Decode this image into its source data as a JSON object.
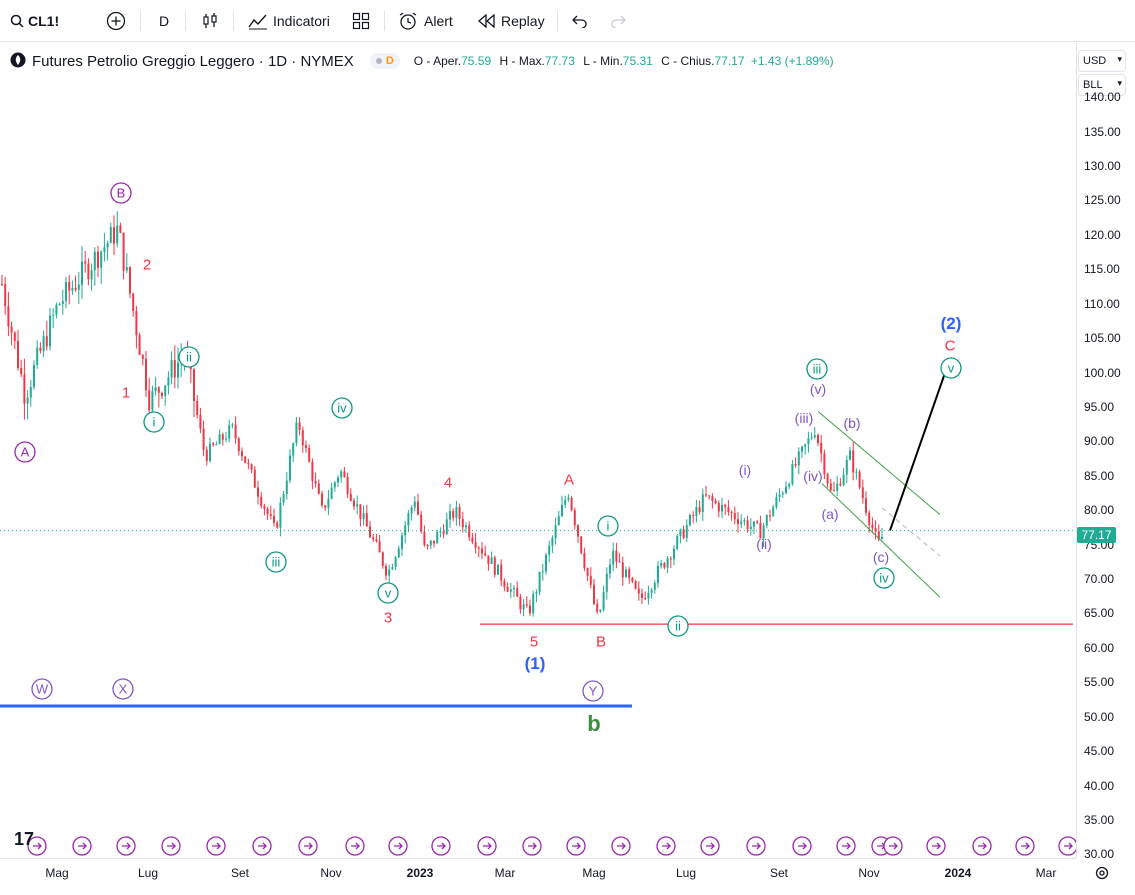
{
  "toolbar": {
    "symbol": "CL1!",
    "interval": "D",
    "indicators_label": "Indicatori",
    "alert_label": "Alert",
    "replay_label": "Replay"
  },
  "legend": {
    "title": "Futures Petrolio Greggio Leggero · 1D · NYMEX",
    "badge": "D",
    "o_label": "O - Aper.",
    "o_value": "75.59",
    "h_label": "H - Max.",
    "h_value": "77.73",
    "l_label": "L - Min.",
    "l_value": "75.31",
    "c_label": "C - Chius.",
    "c_value": "77.17",
    "change": "+1.43 (+1.89%)"
  },
  "yaxis": {
    "currency": "USD",
    "unit": "BLL",
    "last_price": "77.17",
    "ticks": [
      "140.00",
      "135.00",
      "130.00",
      "125.00",
      "120.00",
      "115.00",
      "110.00",
      "105.00",
      "100.00",
      "95.00",
      "90.00",
      "85.00",
      "80.00",
      "75.00",
      "70.00",
      "65.00",
      "60.00",
      "55.00",
      "50.00",
      "45.00",
      "40.00",
      "35.00",
      "30.00"
    ]
  },
  "xaxis": {
    "labels": [
      "Mag",
      "Lug",
      "Set",
      "Nov",
      "2023",
      "Mar",
      "Mag",
      "Lug",
      "Set",
      "Nov",
      "2024",
      "Mar"
    ]
  },
  "colors": {
    "up": "#22ab94",
    "down": "#f23645",
    "purple": "#9c27b0",
    "teal": "#089981",
    "red": "#f23645",
    "blue": "#2962ff",
    "green": "#388e3c",
    "violet": "#7e57c2"
  },
  "chart_data": {
    "type": "candlestick",
    "title": "Futures Petrolio Greggio Leggero · 1D · NYMEX",
    "ylim": [
      30,
      140
    ],
    "x": [
      "Mag",
      "Lug",
      "Set",
      "Nov",
      "2023",
      "Mar",
      "Mag",
      "Lug",
      "Set",
      "Nov",
      "2024",
      "Mar"
    ],
    "path_points": [
      {
        "t": "Mar 2022",
        "v": 113
      },
      {
        "t": "Apr 2022",
        "v": 97
      },
      {
        "t": "Mag 2022",
        "v": 110
      },
      {
        "t": "Giu 2022",
        "v": 121
      },
      {
        "t": "Lug 2022",
        "v": 96
      },
      {
        "t": "Lug 2022",
        "v": 103
      },
      {
        "t": "Ago 2022",
        "v": 88
      },
      {
        "t": "Set 2022",
        "v": 92
      },
      {
        "t": "Set 2022",
        "v": 77
      },
      {
        "t": "Ott 2022",
        "v": 93
      },
      {
        "t": "Nov 2022",
        "v": 80
      },
      {
        "t": "Nov 2022",
        "v": 86
      },
      {
        "t": "Dic 2022",
        "v": 71
      },
      {
        "t": "Gen 2023",
        "v": 82
      },
      {
        "t": "Feb 2023",
        "v": 74
      },
      {
        "t": "Mar 2023",
        "v": 80
      },
      {
        "t": "Mar 2023",
        "v": 65
      },
      {
        "t": "Apr 2023",
        "v": 83
      },
      {
        "t": "Mag 2023",
        "v": 64
      },
      {
        "t": "Mag 2023",
        "v": 74
      },
      {
        "t": "Giu 2023",
        "v": 67
      },
      {
        "t": "Lug 2023",
        "v": 82
      },
      {
        "t": "Ago 2023",
        "v": 77
      },
      {
        "t": "Set 2023",
        "v": 92
      },
      {
        "t": "Ott 2023",
        "v": 82
      },
      {
        "t": "Ott 2023",
        "v": 88
      },
      {
        "t": "Nov 2023",
        "v": 75
      },
      {
        "t": "Nov 2023",
        "v": 77.17
      }
    ],
    "horizontal_lines": [
      {
        "value": 63.6,
        "color": "red"
      },
      {
        "value": 51.7,
        "color": "blue"
      }
    ],
    "projection": {
      "from": 77.2,
      "to": 100.5
    },
    "wave_labels": [
      {
        "text": "B",
        "style": "circled",
        "color": "purple"
      },
      {
        "text": "A",
        "style": "circled",
        "color": "purple"
      },
      {
        "text": "2",
        "style": "plain",
        "color": "red"
      },
      {
        "text": "1",
        "style": "plain",
        "color": "red"
      },
      {
        "text": "ii",
        "style": "circled",
        "color": "teal"
      },
      {
        "text": "i",
        "style": "circled",
        "color": "teal"
      },
      {
        "text": "iv",
        "style": "circled",
        "color": "teal"
      },
      {
        "text": "iii",
        "style": "circled",
        "color": "teal"
      },
      {
        "text": "v",
        "style": "circled",
        "color": "teal"
      },
      {
        "text": "3",
        "style": "plain",
        "color": "red"
      },
      {
        "text": "4",
        "style": "plain",
        "color": "red"
      },
      {
        "text": "A",
        "style": "plain",
        "color": "red"
      },
      {
        "text": "i",
        "style": "circled",
        "color": "teal"
      },
      {
        "text": "5",
        "style": "plain",
        "color": "red"
      },
      {
        "text": "(1)",
        "style": "plain",
        "color": "blue"
      },
      {
        "text": "B",
        "style": "plain",
        "color": "red"
      },
      {
        "text": "Y",
        "style": "circled",
        "color": "violet"
      },
      {
        "text": "b",
        "style": "plain",
        "color": "green"
      },
      {
        "text": "ii",
        "style": "circled",
        "color": "teal"
      },
      {
        "text": "W",
        "style": "circled",
        "color": "violet"
      },
      {
        "text": "X",
        "style": "circled",
        "color": "violet"
      },
      {
        "text": "(i)",
        "style": "plain",
        "color": "violet"
      },
      {
        "text": "(ii)",
        "style": "plain",
        "color": "violet"
      },
      {
        "text": "(iii)",
        "style": "plain",
        "color": "violet"
      },
      {
        "text": "iii",
        "style": "circled",
        "color": "teal"
      },
      {
        "text": "(v)",
        "style": "plain",
        "color": "violet"
      },
      {
        "text": "(iv)",
        "style": "plain",
        "color": "violet"
      },
      {
        "text": "(b)",
        "style": "plain",
        "color": "violet"
      },
      {
        "text": "(a)",
        "style": "plain",
        "color": "violet"
      },
      {
        "text": "(c)",
        "style": "plain",
        "color": "violet"
      },
      {
        "text": "iv",
        "style": "circled",
        "color": "teal"
      },
      {
        "text": "(2)",
        "style": "plain",
        "color": "blue"
      },
      {
        "text": "C",
        "style": "plain",
        "color": "red"
      },
      {
        "text": "v",
        "style": "circled",
        "color": "teal"
      }
    ]
  }
}
